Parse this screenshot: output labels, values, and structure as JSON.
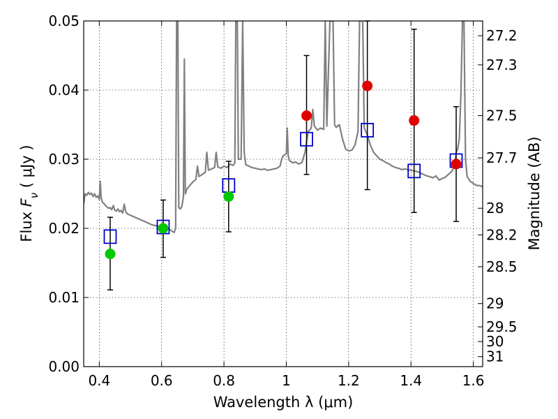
{
  "chart_data": {
    "type": "scatter",
    "xlabel": "Wavelength  λ (μm)",
    "ylabel": "Flux  F_ν  ( μJy )",
    "ylabel_parts": {
      "pre": "Flux  ",
      "var": "F",
      "sub": "ν",
      "unit": "  ( μJy )"
    },
    "y2label": "Magnitude (AB)",
    "xlim": [
      0.35,
      1.63
    ],
    "ylim": [
      0.0,
      0.05
    ],
    "grid": true,
    "x_ticks": [
      {
        "value": 0.4,
        "label": "0.4"
      },
      {
        "value": 0.6,
        "label": "0.6"
      },
      {
        "value": 0.8,
        "label": "0.8"
      },
      {
        "value": 1.0,
        "label": "1"
      },
      {
        "value": 1.2,
        "label": "1.2"
      },
      {
        "value": 1.4,
        "label": "1.4"
      },
      {
        "value": 1.6,
        "label": "1.6"
      }
    ],
    "y_ticks": [
      {
        "value": 0.0,
        "label": "0.00"
      },
      {
        "value": 0.01,
        "label": "0.01"
      },
      {
        "value": 0.02,
        "label": "0.02"
      },
      {
        "value": 0.03,
        "label": "0.03"
      },
      {
        "value": 0.04,
        "label": "0.04"
      },
      {
        "value": 0.05,
        "label": "0.05"
      }
    ],
    "y2_ticks": [
      {
        "value": 27.2,
        "label": "27.2"
      },
      {
        "value": 27.3,
        "label": "27.3"
      },
      {
        "value": 27.5,
        "label": "27.5"
      },
      {
        "value": 27.7,
        "label": "27.7"
      },
      {
        "value": 28.0,
        "label": "28"
      },
      {
        "value": 28.2,
        "label": "28.2"
      },
      {
        "value": 28.5,
        "label": "28.5"
      },
      {
        "value": 29.0,
        "label": "29"
      },
      {
        "value": 29.5,
        "label": "29.5"
      },
      {
        "value": 30.0,
        "label": "30"
      },
      {
        "value": 31.0,
        "label": "31"
      }
    ],
    "spectrum": {
      "color": "#808080",
      "points": [
        [
          0.35,
          0.0236
        ],
        [
          0.355,
          0.025
        ],
        [
          0.36,
          0.0248
        ],
        [
          0.365,
          0.0252
        ],
        [
          0.37,
          0.0249
        ],
        [
          0.375,
          0.0251
        ],
        [
          0.38,
          0.0246
        ],
        [
          0.385,
          0.025
        ],
        [
          0.39,
          0.0245
        ],
        [
          0.395,
          0.0247
        ],
        [
          0.4,
          0.0242
        ],
        [
          0.403,
          0.0268
        ],
        [
          0.406,
          0.0244
        ],
        [
          0.41,
          0.0238
        ],
        [
          0.415,
          0.0236
        ],
        [
          0.42,
          0.0233
        ],
        [
          0.425,
          0.0231
        ],
        [
          0.43,
          0.0229
        ],
        [
          0.435,
          0.023
        ],
        [
          0.44,
          0.0227
        ],
        [
          0.445,
          0.0233
        ],
        [
          0.45,
          0.0226
        ],
        [
          0.455,
          0.0225
        ],
        [
          0.46,
          0.0228
        ],
        [
          0.465,
          0.0224
        ],
        [
          0.47,
          0.0226
        ],
        [
          0.475,
          0.0222
        ],
        [
          0.48,
          0.0235
        ],
        [
          0.485,
          0.0224
        ],
        [
          0.49,
          0.0221
        ],
        [
          0.5,
          0.0219
        ],
        [
          0.51,
          0.0217
        ],
        [
          0.52,
          0.0215
        ],
        [
          0.53,
          0.0213
        ],
        [
          0.54,
          0.0211
        ],
        [
          0.55,
          0.0209
        ],
        [
          0.56,
          0.0207
        ],
        [
          0.57,
          0.0205
        ],
        [
          0.58,
          0.0204
        ],
        [
          0.59,
          0.0203
        ],
        [
          0.6,
          0.0202
        ],
        [
          0.61,
          0.0201
        ],
        [
          0.62,
          0.02
        ],
        [
          0.63,
          0.0197
        ],
        [
          0.64,
          0.0194
        ],
        [
          0.645,
          0.02
        ],
        [
          0.648,
          0.05
        ],
        [
          0.65,
          0.05
        ],
        [
          0.652,
          0.05
        ],
        [
          0.655,
          0.023
        ],
        [
          0.66,
          0.0228
        ],
        [
          0.665,
          0.0232
        ],
        [
          0.67,
          0.0246
        ],
        [
          0.673,
          0.0445
        ],
        [
          0.676,
          0.025
        ],
        [
          0.68,
          0.0256
        ],
        [
          0.69,
          0.0262
        ],
        [
          0.7,
          0.0267
        ],
        [
          0.71,
          0.0271
        ],
        [
          0.715,
          0.029
        ],
        [
          0.72,
          0.0275
        ],
        [
          0.73,
          0.0278
        ],
        [
          0.74,
          0.0281
        ],
        [
          0.745,
          0.031
        ],
        [
          0.75,
          0.0284
        ],
        [
          0.76,
          0.0286
        ],
        [
          0.77,
          0.0288
        ],
        [
          0.775,
          0.031
        ],
        [
          0.78,
          0.0289
        ],
        [
          0.79,
          0.0287
        ],
        [
          0.8,
          0.029
        ],
        [
          0.81,
          0.0288
        ],
        [
          0.82,
          0.0293
        ],
        [
          0.83,
          0.0291
        ],
        [
          0.835,
          0.0295
        ],
        [
          0.838,
          0.05
        ],
        [
          0.84,
          0.05
        ],
        [
          0.843,
          0.05
        ],
        [
          0.846,
          0.03
        ],
        [
          0.85,
          0.03
        ],
        [
          0.855,
          0.03
        ],
        [
          0.86,
          0.05
        ],
        [
          0.865,
          0.031
        ],
        [
          0.87,
          0.0292
        ],
        [
          0.88,
          0.029
        ],
        [
          0.89,
          0.0288
        ],
        [
          0.9,
          0.0287
        ],
        [
          0.91,
          0.0286
        ],
        [
          0.92,
          0.0285
        ],
        [
          0.93,
          0.0286
        ],
        [
          0.94,
          0.0284
        ],
        [
          0.95,
          0.0285
        ],
        [
          0.96,
          0.0286
        ],
        [
          0.97,
          0.0287
        ],
        [
          0.98,
          0.029
        ],
        [
          0.985,
          0.03
        ],
        [
          0.99,
          0.0305
        ],
        [
          1.0,
          0.0308
        ],
        [
          1.003,
          0.0345
        ],
        [
          1.006,
          0.0305
        ],
        [
          1.01,
          0.0298
        ],
        [
          1.02,
          0.0295
        ],
        [
          1.03,
          0.0296
        ],
        [
          1.04,
          0.0293
        ],
        [
          1.05,
          0.0295
        ],
        [
          1.06,
          0.031
        ],
        [
          1.07,
          0.034
        ],
        [
          1.08,
          0.0345
        ],
        [
          1.085,
          0.0372
        ],
        [
          1.09,
          0.0348
        ],
        [
          1.1,
          0.0342
        ],
        [
          1.11,
          0.0345
        ],
        [
          1.12,
          0.0343
        ],
        [
          1.125,
          0.05
        ],
        [
          1.13,
          0.0348
        ],
        [
          1.14,
          0.05
        ],
        [
          1.145,
          0.05
        ],
        [
          1.15,
          0.05
        ],
        [
          1.155,
          0.035
        ],
        [
          1.16,
          0.0346
        ],
        [
          1.17,
          0.035
        ],
        [
          1.18,
          0.033
        ],
        [
          1.19,
          0.0315
        ],
        [
          1.2,
          0.0312
        ],
        [
          1.21,
          0.0313
        ],
        [
          1.22,
          0.032
        ],
        [
          1.23,
          0.034
        ],
        [
          1.235,
          0.05
        ],
        [
          1.24,
          0.05
        ],
        [
          1.245,
          0.05
        ],
        [
          1.25,
          0.0345
        ],
        [
          1.26,
          0.0335
        ],
        [
          1.27,
          0.032
        ],
        [
          1.28,
          0.031
        ],
        [
          1.29,
          0.0305
        ],
        [
          1.3,
          0.03
        ],
        [
          1.31,
          0.0298
        ],
        [
          1.32,
          0.0295
        ],
        [
          1.33,
          0.0293
        ],
        [
          1.34,
          0.029
        ],
        [
          1.35,
          0.0288
        ],
        [
          1.36,
          0.0287
        ],
        [
          1.37,
          0.0285
        ],
        [
          1.38,
          0.0286
        ],
        [
          1.39,
          0.0285
        ],
        [
          1.4,
          0.0284
        ],
        [
          1.41,
          0.0283
        ],
        [
          1.42,
          0.0282
        ],
        [
          1.43,
          0.028
        ],
        [
          1.44,
          0.0278
        ],
        [
          1.45,
          0.0276
        ],
        [
          1.46,
          0.0275
        ],
        [
          1.47,
          0.0273
        ],
        [
          1.48,
          0.0276
        ],
        [
          1.49,
          0.027
        ],
        [
          1.5,
          0.0272
        ],
        [
          1.51,
          0.0274
        ],
        [
          1.52,
          0.0278
        ],
        [
          1.53,
          0.0282
        ],
        [
          1.54,
          0.029
        ],
        [
          1.545,
          0.031
        ],
        [
          1.55,
          0.0315
        ],
        [
          1.555,
          0.033
        ],
        [
          1.56,
          0.039
        ],
        [
          1.565,
          0.05
        ],
        [
          1.57,
          0.05
        ],
        [
          1.575,
          0.03
        ],
        [
          1.58,
          0.0275
        ],
        [
          1.59,
          0.0268
        ],
        [
          1.6,
          0.0265
        ],
        [
          1.61,
          0.0262
        ],
        [
          1.62,
          0.0262
        ],
        [
          1.63,
          0.026
        ]
      ]
    },
    "series": [
      {
        "marker": "circle",
        "color": "#00c800",
        "x": [
          0.435,
          0.605,
          0.815
        ],
        "y": [
          0.0163,
          0.02,
          0.0246
        ]
      },
      {
        "marker": "circle",
        "color": "#e00000",
        "x": [
          1.065,
          1.26,
          1.41,
          1.545
        ],
        "y": [
          0.0363,
          0.0406,
          0.0356,
          0.0293
        ]
      },
      {
        "marker": "square-open",
        "color": "#0000cc",
        "x": [
          0.435,
          0.605,
          0.815,
          1.065,
          1.26,
          1.41,
          1.545
        ],
        "y": [
          0.0188,
          0.0202,
          0.0262,
          0.0329,
          0.0342,
          0.0283,
          0.0298
        ],
        "err_low": [
          0.0111,
          0.0158,
          0.0195,
          0.0278,
          0.0256,
          0.0223,
          0.021
        ],
        "err_high": [
          0.0216,
          0.0241,
          0.0297,
          0.045,
          0.05,
          0.0488,
          0.0376
        ]
      }
    ]
  }
}
